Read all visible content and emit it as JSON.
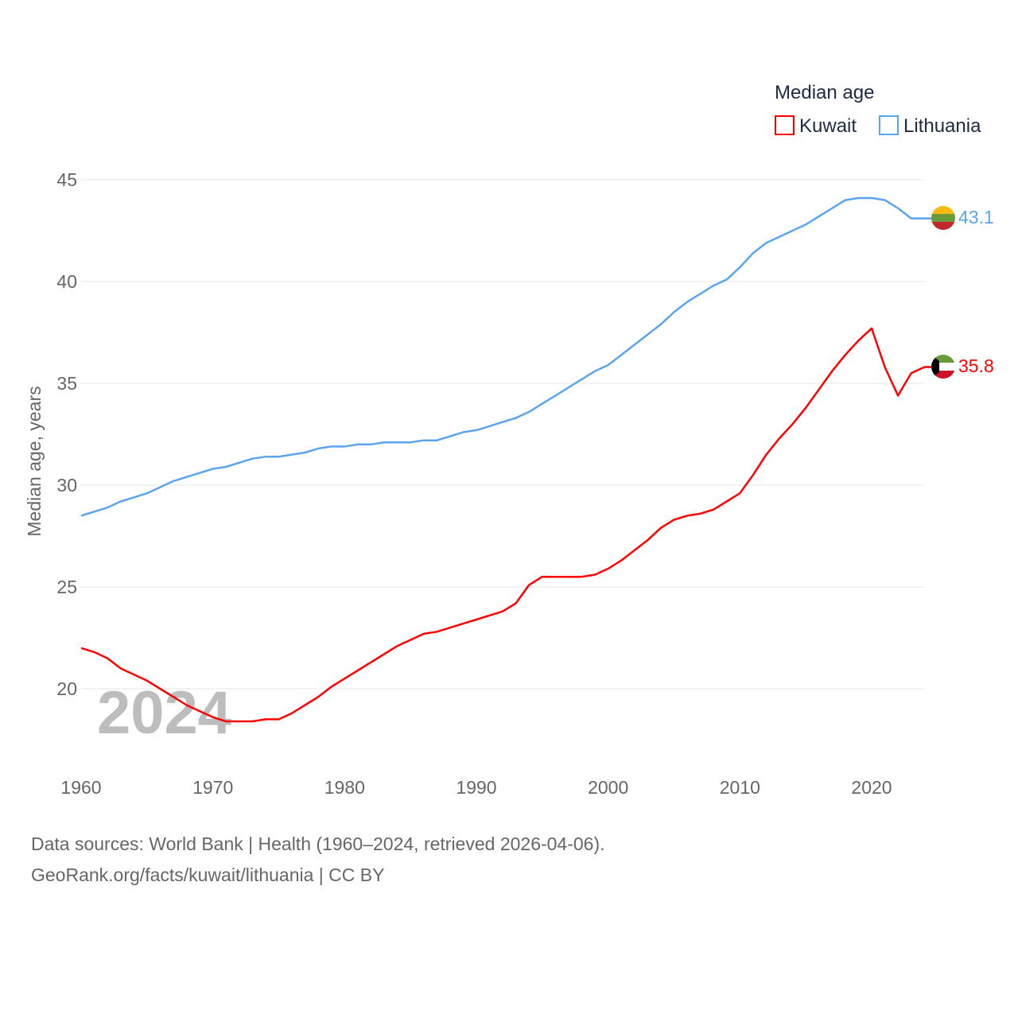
{
  "chart_data": {
    "type": "line",
    "title": "Median age",
    "xlabel": "",
    "ylabel": "Median age, years",
    "xlim": [
      1960,
      2024
    ],
    "ylim": [
      17.5,
      45
    ],
    "x_ticks": [
      1960,
      1970,
      1980,
      1990,
      2000,
      2010,
      2020
    ],
    "y_ticks": [
      20,
      25,
      30,
      35,
      40,
      45
    ],
    "grid": true,
    "legend_position": "top-right",
    "year_watermark": "2024",
    "x": [
      1960,
      1961,
      1962,
      1963,
      1964,
      1965,
      1966,
      1967,
      1968,
      1969,
      1970,
      1971,
      1972,
      1973,
      1974,
      1975,
      1976,
      1977,
      1978,
      1979,
      1980,
      1981,
      1982,
      1983,
      1984,
      1985,
      1986,
      1987,
      1988,
      1989,
      1990,
      1991,
      1992,
      1993,
      1994,
      1995,
      1996,
      1997,
      1998,
      1999,
      2000,
      2001,
      2002,
      2003,
      2004,
      2005,
      2006,
      2007,
      2008,
      2009,
      2010,
      2011,
      2012,
      2013,
      2014,
      2015,
      2016,
      2017,
      2018,
      2019,
      2020,
      2021,
      2022,
      2023,
      2024
    ],
    "series": [
      {
        "name": "Kuwait",
        "color": "#ff0000",
        "end_label": "35.8",
        "values": [
          22.0,
          21.8,
          21.5,
          21.0,
          20.7,
          20.4,
          20.0,
          19.6,
          19.2,
          18.9,
          18.6,
          18.4,
          18.4,
          18.4,
          18.5,
          18.5,
          18.8,
          19.2,
          19.6,
          20.1,
          20.5,
          20.9,
          21.3,
          21.7,
          22.1,
          22.4,
          22.7,
          22.8,
          23.0,
          23.2,
          23.4,
          23.6,
          23.8,
          24.2,
          25.1,
          25.5,
          25.5,
          25.5,
          25.5,
          25.6,
          25.9,
          26.3,
          26.8,
          27.3,
          27.9,
          28.3,
          28.5,
          28.6,
          28.8,
          29.2,
          29.6,
          30.5,
          31.5,
          32.3,
          33.0,
          33.8,
          34.7,
          35.6,
          36.4,
          37.1,
          37.7,
          35.8,
          34.4,
          35.5,
          35.8
        ]
      },
      {
        "name": "Lithuania",
        "color": "#5ba4ee",
        "end_label": "43.1",
        "values": [
          28.5,
          28.7,
          28.9,
          29.2,
          29.4,
          29.6,
          29.9,
          30.2,
          30.4,
          30.6,
          30.8,
          30.9,
          31.1,
          31.3,
          31.4,
          31.4,
          31.5,
          31.6,
          31.8,
          31.9,
          31.9,
          32.0,
          32.0,
          32.1,
          32.1,
          32.1,
          32.2,
          32.2,
          32.4,
          32.6,
          32.7,
          32.9,
          33.1,
          33.3,
          33.6,
          34.0,
          34.4,
          34.8,
          35.2,
          35.6,
          35.9,
          36.4,
          36.9,
          37.4,
          37.9,
          38.5,
          39.0,
          39.4,
          39.8,
          40.1,
          40.7,
          41.4,
          41.9,
          42.2,
          42.5,
          42.8,
          43.2,
          43.6,
          44.0,
          44.1,
          44.1,
          44.0,
          43.6,
          43.1,
          43.1
        ]
      }
    ]
  },
  "footer": {
    "line1": "Data sources: World Bank | Health (1960–2024, retrieved 2026-04-06).",
    "line2": "GeoRank.org/facts/kuwait/lithuania | CC BY"
  }
}
